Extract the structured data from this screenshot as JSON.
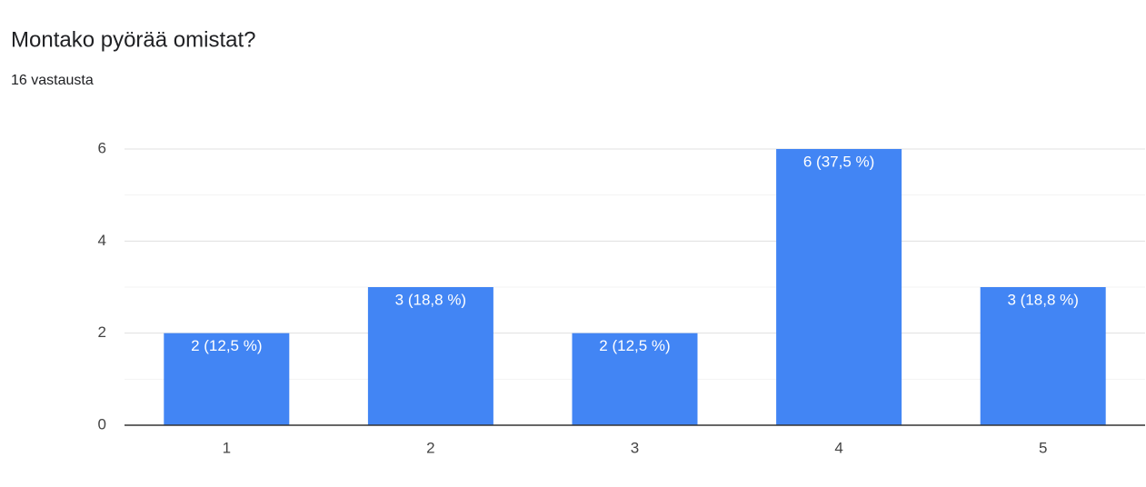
{
  "header": {
    "title": "Montako pyörää omistat?",
    "subtitle": "16 vastausta"
  },
  "chart_data": {
    "type": "bar",
    "categories": [
      "1",
      "2",
      "3",
      "4",
      "5"
    ],
    "values": [
      2,
      3,
      2,
      6,
      3
    ],
    "value_labels": [
      "2 (12,5 %)",
      "3 (18,8 %)",
      "2 (12,5 %)",
      "6 (37,5 %)",
      "3 (18,8 %)"
    ],
    "color": "#4285f4",
    "ylim": [
      0,
      6
    ],
    "yticks": [
      0,
      2,
      4,
      6
    ],
    "grid": true
  }
}
